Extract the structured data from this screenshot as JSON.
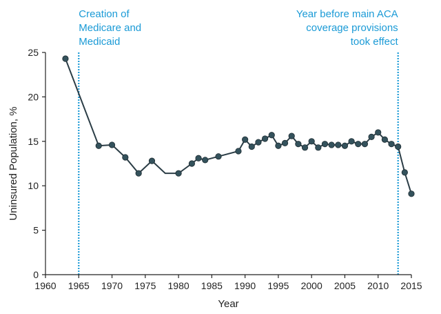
{
  "chart_data": {
    "type": "line",
    "title": "",
    "xlabel": "Year",
    "ylabel": "Uninsured Population, %",
    "xlim": [
      1960,
      2015
    ],
    "ylim": [
      0,
      25
    ],
    "x_ticks": [
      1960,
      1965,
      1970,
      1975,
      1980,
      1985,
      1990,
      1995,
      2000,
      2005,
      2010,
      2015
    ],
    "y_ticks": [
      0,
      5,
      10,
      15,
      20,
      25
    ],
    "grid": false,
    "line_color": "#2b3d46",
    "marker_color": "#34525c",
    "series": [
      {
        "x": [
          1963,
          1968,
          1970,
          1972,
          1974,
          1976,
          1978,
          1980,
          1982,
          1983,
          1984,
          1986,
          1989,
          1990,
          1991,
          1992,
          1993,
          1994,
          1995,
          1996,
          1997,
          1998,
          1999,
          2000,
          2001,
          2002,
          2003,
          2004,
          2005,
          2006,
          2007,
          2008,
          2009,
          2010,
          2011,
          2012,
          2013,
          2014,
          2015
        ],
        "y": [
          24.3,
          14.5,
          14.6,
          13.2,
          11.4,
          12.8,
          11.4,
          11.4,
          12.5,
          13.1,
          12.9,
          13.3,
          13.9,
          15.2,
          14.4,
          14.9,
          15.3,
          15.7,
          14.5,
          14.8,
          15.6,
          14.7,
          14.3,
          15.0,
          14.3,
          14.7,
          14.6,
          14.6,
          14.5,
          15.0,
          14.7,
          14.7,
          15.5,
          16.0,
          15.2,
          14.7,
          14.4,
          11.5,
          9.1
        ],
        "markers": [
          true,
          true,
          true,
          true,
          true,
          true,
          false,
          true,
          true,
          true,
          true,
          true,
          true,
          true,
          true,
          true,
          true,
          true,
          true,
          true,
          true,
          true,
          true,
          true,
          true,
          true,
          true,
          true,
          true,
          true,
          true,
          true,
          true,
          true,
          true,
          true,
          true,
          true,
          true
        ]
      }
    ],
    "annotations": [
      {
        "x": 1965,
        "lines": [
          "Creation of",
          "Medicare and",
          "Medicaid"
        ],
        "align": "left"
      },
      {
        "x": 2013,
        "lines": [
          "Year before main ACA",
          "coverage provisions",
          "took effect"
        ],
        "align": "right"
      }
    ],
    "annotation_color": "#1a9ad6"
  }
}
